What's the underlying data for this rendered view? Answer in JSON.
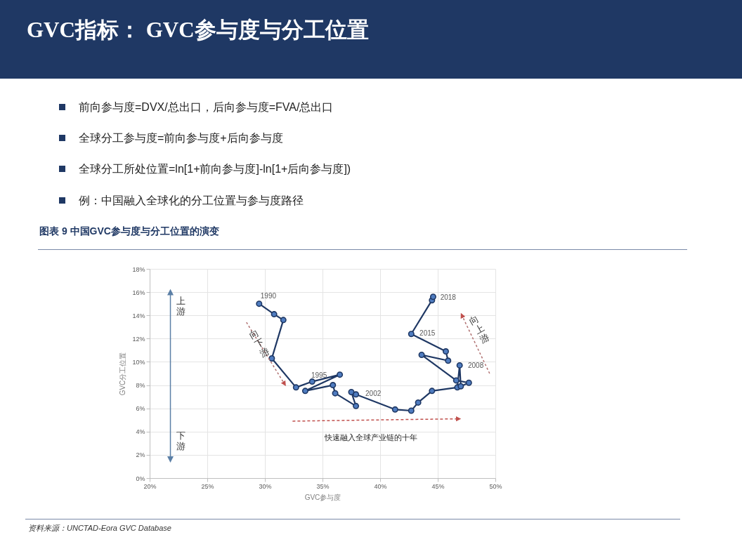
{
  "chart_data": {
    "type": "line",
    "title": "GVC指标： GVC参与度与分工位置",
    "subtitle": "图表 9  中国GVC参与度与分工位置的演变",
    "xlabel": "GVC参与度",
    "ylabel": "GVC分工位置",
    "annotations": [
      "前向参与度=DVX/总出口，后向参与度=FVA/总出口",
      "全球分工参与度=前向参与度+后向参与度",
      "全球分工所处位置=ln[1+前向参与度]-ln[1+后向参与度])",
      "例：中国融入全球化的分工位置与参与度路径",
      "资料来源：UNCTAD-Eora GVC Database",
      "1990",
      "1995",
      "2002",
      "2008",
      "2015",
      "2018",
      "上游",
      "下游",
      "向下游",
      "向上游",
      "快速融入全球产业链的十年"
    ],
    "x": [
      29.5,
      30.8,
      31.6,
      30.6,
      32.7,
      34.1,
      36.5,
      33.5,
      35.9,
      36.1,
      37.9,
      37.5,
      37.9,
      41.3,
      42.7,
      43.3,
      44.5,
      46.7,
      46.9,
      47.0,
      47.7,
      46.6,
      43.6,
      45.9,
      45.7,
      42.7,
      44.5,
      44.6
    ],
    "series": [
      {
        "color": "#1f3864",
        "values": [
          15.0,
          14.1,
          13.6,
          10.3,
          7.8,
          8.3,
          8.9,
          7.5,
          8.0,
          7.3,
          6.2,
          7.4,
          7.2,
          5.9,
          5.8,
          6.5,
          7.5,
          7.8,
          9.7,
          7.9,
          8.2,
          8.4,
          10.6,
          10.1,
          10.9,
          12.4,
          15.3,
          15.6
        ]
      }
    ],
    "marker": "circle",
    "grid": true,
    "xlim": [
      20,
      50
    ],
    "xticks": [
      {
        "value": 20,
        "label": "20%"
      },
      {
        "value": 25,
        "label": "25%"
      },
      {
        "value": 30,
        "label": "30%"
      },
      {
        "value": 35,
        "label": "35%"
      },
      {
        "value": 40,
        "label": "40%"
      },
      {
        "value": 45,
        "label": "45%"
      },
      {
        "value": 50,
        "label": "50%"
      }
    ],
    "ylim": [
      0,
      18
    ],
    "yticks": [
      {
        "value": 0,
        "label": "0%"
      },
      {
        "value": 2,
        "label": "2%"
      },
      {
        "value": 4,
        "label": "4%"
      },
      {
        "value": 6,
        "label": "6%"
      },
      {
        "value": 8,
        "label": "8%"
      },
      {
        "value": 10,
        "label": "10%"
      },
      {
        "value": 12,
        "label": "12%"
      },
      {
        "value": 14,
        "label": "14%"
      },
      {
        "value": 16,
        "label": "16%"
      },
      {
        "value": 18,
        "label": "18%"
      }
    ]
  }
}
